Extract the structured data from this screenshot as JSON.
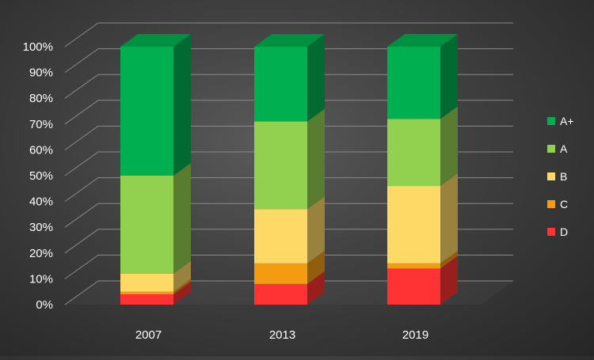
{
  "chart_data": {
    "type": "bar",
    "stacked": true,
    "three_d": true,
    "categories": [
      "2007",
      "2013",
      "2019"
    ],
    "series": [
      {
        "name": "D",
        "color": "#ff3333",
        "values": [
          4,
          8,
          14
        ]
      },
      {
        "name": "C",
        "color": "#f39c12",
        "values": [
          1,
          8,
          2
        ]
      },
      {
        "name": "B",
        "color": "#ffd966",
        "values": [
          7,
          21,
          30
        ]
      },
      {
        "name": "A",
        "color": "#92d050",
        "values": [
          38,
          34,
          26
        ]
      },
      {
        "name": "A+",
        "color": "#00b050",
        "values": [
          50,
          29,
          28
        ]
      }
    ],
    "y_ticks": [
      "0%",
      "10%",
      "20%",
      "30%",
      "40%",
      "50%",
      "60%",
      "70%",
      "80%",
      "90%",
      "100%"
    ],
    "ylim": [
      0,
      100
    ],
    "grid": true,
    "legend_order": [
      "A+",
      "A",
      "B",
      "C",
      "D"
    ],
    "legend_position": "right"
  }
}
